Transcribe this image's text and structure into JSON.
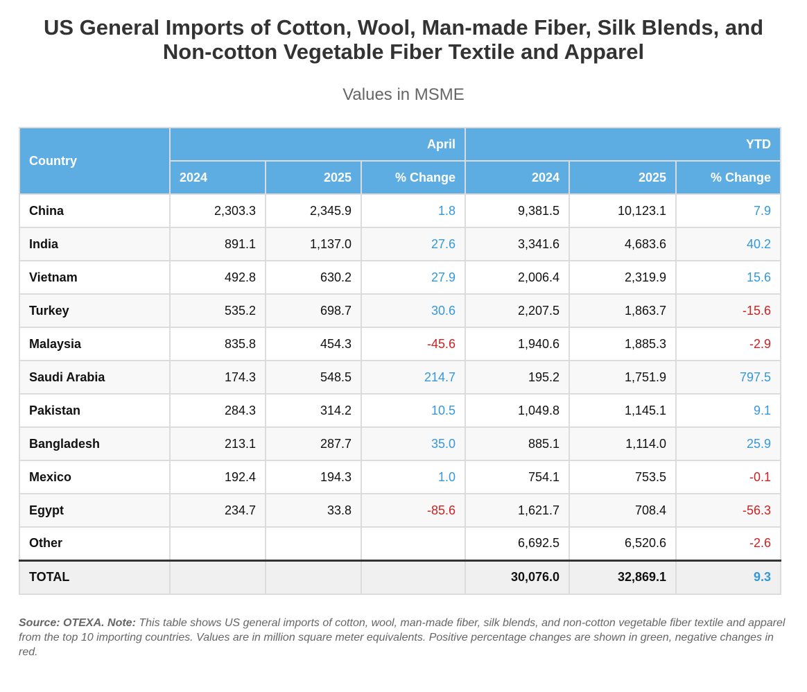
{
  "title": "US General Imports of Cotton, Wool, Man-made Fiber, Silk Blends, and Non-cotton Vegetable Fiber Textile and Apparel",
  "subtitle": "Values in MSME",
  "table": {
    "country_header": "Country",
    "april_header": "April",
    "ytd_header": "YTD",
    "sub_headers": [
      "2024",
      "2025",
      "% Change",
      "2024",
      "2025",
      "% Change"
    ],
    "rows": [
      {
        "country": "China",
        "apr_2024": "2,303.3",
        "apr_2025": "2,345.9",
        "apr_change": "1.8",
        "ytd_2024": "9,381.5",
        "ytd_2025": "10,123.1",
        "ytd_change": "7.9"
      },
      {
        "country": "India",
        "apr_2024": "891.1",
        "apr_2025": "1,137.0",
        "apr_change": "27.6",
        "ytd_2024": "3,341.6",
        "ytd_2025": "4,683.6",
        "ytd_change": "40.2"
      },
      {
        "country": "Vietnam",
        "apr_2024": "492.8",
        "apr_2025": "630.2",
        "apr_change": "27.9",
        "ytd_2024": "2,006.4",
        "ytd_2025": "2,319.9",
        "ytd_change": "15.6"
      },
      {
        "country": "Turkey",
        "apr_2024": "535.2",
        "apr_2025": "698.7",
        "apr_change": "30.6",
        "ytd_2024": "2,207.5",
        "ytd_2025": "1,863.7",
        "ytd_change": "-15.6"
      },
      {
        "country": "Malaysia",
        "apr_2024": "835.8",
        "apr_2025": "454.3",
        "apr_change": "-45.6",
        "ytd_2024": "1,940.6",
        "ytd_2025": "1,885.3",
        "ytd_change": "-2.9"
      },
      {
        "country": "Saudi Arabia",
        "apr_2024": "174.3",
        "apr_2025": "548.5",
        "apr_change": "214.7",
        "ytd_2024": "195.2",
        "ytd_2025": "1,751.9",
        "ytd_change": "797.5"
      },
      {
        "country": "Pakistan",
        "apr_2024": "284.3",
        "apr_2025": "314.2",
        "apr_change": "10.5",
        "ytd_2024": "1,049.8",
        "ytd_2025": "1,145.1",
        "ytd_change": "9.1"
      },
      {
        "country": "Bangladesh",
        "apr_2024": "213.1",
        "apr_2025": "287.7",
        "apr_change": "35.0",
        "ytd_2024": "885.1",
        "ytd_2025": "1,114.0",
        "ytd_change": "25.9"
      },
      {
        "country": "Mexico",
        "apr_2024": "192.4",
        "apr_2025": "194.3",
        "apr_change": "1.0",
        "ytd_2024": "754.1",
        "ytd_2025": "753.5",
        "ytd_change": "-0.1"
      },
      {
        "country": "Egypt",
        "apr_2024": "234.7",
        "apr_2025": "33.8",
        "apr_change": "-85.6",
        "ytd_2024": "1,621.7",
        "ytd_2025": "708.4",
        "ytd_change": "-56.3"
      },
      {
        "country": "Other",
        "apr_2024": "",
        "apr_2025": "",
        "apr_change": "",
        "ytd_2024": "6,692.5",
        "ytd_2025": "6,520.6",
        "ytd_change": "-2.6"
      }
    ],
    "total": {
      "country": "TOTAL",
      "apr_2024": "",
      "apr_2025": "",
      "apr_change": "",
      "ytd_2024": "30,076.0",
      "ytd_2025": "32,869.1",
      "ytd_change": "9.3"
    }
  },
  "footnote": {
    "source_label": "Source: OTEXA. Note:",
    "text": "This table shows US general imports of cotton, wool, man-made fiber, silk blends, and non-cotton vegetable fiber textile and apparel from the top 10 importing countries. Values are in million square meter equivalents. Positive percentage changes are shown in green, negative changes in red."
  },
  "colors": {
    "header_bg": "#5dade2",
    "positive": "#3498db",
    "negative": "#cc2222"
  }
}
